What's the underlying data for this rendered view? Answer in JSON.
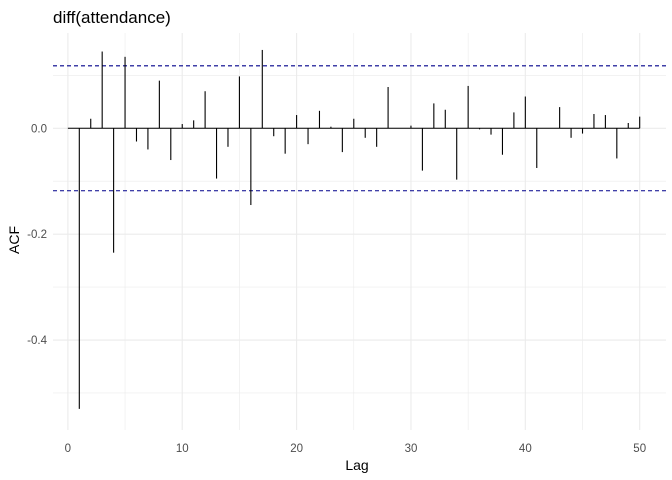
{
  "chart_data": {
    "type": "bar",
    "title": "diff(attendance)",
    "xlabel": "Lag",
    "ylabel": "ACF",
    "x": [
      1,
      2,
      3,
      4,
      5,
      6,
      7,
      8,
      9,
      10,
      11,
      12,
      13,
      14,
      15,
      16,
      17,
      18,
      19,
      20,
      21,
      22,
      23,
      24,
      25,
      26,
      27,
      28,
      29,
      30,
      31,
      32,
      33,
      34,
      35,
      36,
      37,
      38,
      39,
      40,
      41,
      42,
      43,
      44,
      45,
      46,
      47,
      48,
      49,
      50
    ],
    "values": [
      -0.53,
      0.018,
      0.145,
      -0.235,
      0.135,
      -0.025,
      -0.04,
      0.09,
      -0.06,
      0.008,
      0.015,
      0.07,
      -0.095,
      -0.035,
      0.098,
      -0.145,
      0.148,
      -0.015,
      -0.048,
      0.025,
      -0.03,
      0.033,
      0.003,
      -0.045,
      0.018,
      -0.018,
      -0.035,
      0.078,
      0.0,
      0.005,
      -0.08,
      0.047,
      0.035,
      -0.097,
      0.08,
      -0.002,
      -0.012,
      -0.05,
      0.03,
      0.06,
      -0.075,
      0.0,
      0.04,
      -0.018,
      -0.01,
      0.027,
      0.025,
      -0.057,
      0.01,
      0.022
    ],
    "confidence_bound": 0.118,
    "xlim": [
      -1.3,
      52.3
    ],
    "ylim": [
      -0.57,
      0.18
    ],
    "x_ticks": [
      0,
      10,
      20,
      30,
      40,
      50
    ],
    "y_ticks": [
      -0.4,
      -0.2,
      0.0
    ],
    "y_tick_labels": [
      "-0.4",
      "-0.2",
      "0.0"
    ],
    "grid": true,
    "colors": {
      "bars": "#000000",
      "bounds": "#00008b",
      "grid": "#ebebeb",
      "zero": "#000000"
    }
  }
}
